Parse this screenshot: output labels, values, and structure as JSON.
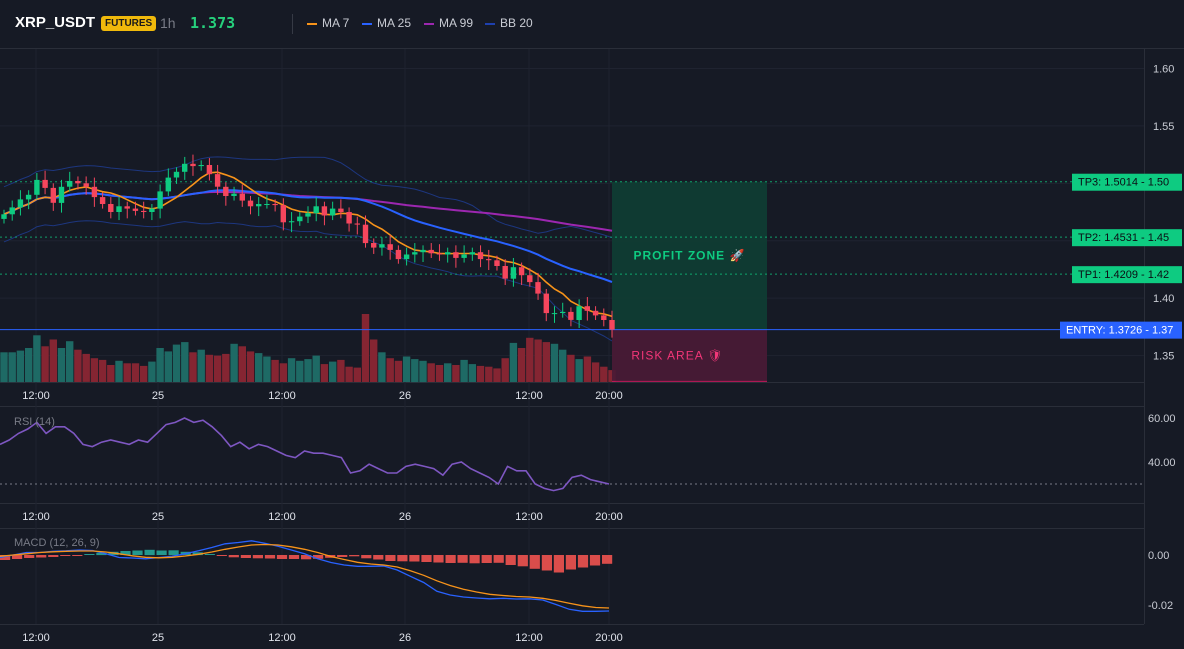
{
  "header": {
    "symbol": "XRP_USDT",
    "badge": "FUTURES",
    "timeframe": "1h",
    "price": "1.373"
  },
  "legend": [
    {
      "label": "MA 7",
      "color": "#f7931a"
    },
    {
      "label": "MA 25",
      "color": "#2962ff"
    },
    {
      "label": "MA 99",
      "color": "#9c27b0"
    },
    {
      "label": "BB 20",
      "color": "#1e40af"
    }
  ],
  "colors": {
    "up": "#26a69a",
    "up_bright": "#0ecb81",
    "down": "#f23645",
    "down_bright": "#f6465d"
  },
  "chart_data": [
    {
      "type": "candlestick",
      "name": "price",
      "x_ticks": [
        "12:00",
        "25",
        "12:00",
        "26",
        "12:00",
        "20:00"
      ],
      "y_ticks": [
        1.35,
        1.4,
        1.45,
        1.5,
        1.55,
        1.6
      ],
      "ylim": [
        1.327,
        1.61
      ],
      "closes": [
        1.473,
        1.479,
        1.486,
        1.49,
        1.503,
        1.496,
        1.483,
        1.497,
        1.502,
        1.5,
        1.497,
        1.488,
        1.482,
        1.475,
        1.48,
        1.478,
        1.476,
        1.475,
        1.478,
        1.493,
        1.505,
        1.51,
        1.517,
        1.515,
        1.516,
        1.508,
        1.497,
        1.489,
        1.491,
        1.485,
        1.48,
        1.482,
        1.482,
        1.481,
        1.466,
        1.467,
        1.471,
        1.474,
        1.48,
        1.472,
        1.478,
        1.475,
        1.465,
        1.464,
        1.448,
        1.444,
        1.447,
        1.442,
        1.434,
        1.438,
        1.44,
        1.442,
        1.439,
        1.438,
        1.44,
        1.435,
        1.438,
        1.44,
        1.434,
        1.433,
        1.428,
        1.417,
        1.427,
        1.42,
        1.414,
        1.404,
        1.387,
        1.387,
        1.388,
        1.381,
        1.393,
        1.389,
        1.385,
        1.381,
        1.3726
      ],
      "volumes": [
        35,
        35,
        37,
        40,
        55,
        42,
        50,
        40,
        48,
        38,
        33,
        28,
        26,
        20,
        25,
        22,
        22,
        19,
        24,
        40,
        36,
        44,
        47,
        35,
        38,
        32,
        31,
        33,
        45,
        42,
        36,
        34,
        30,
        26,
        22,
        28,
        25,
        27,
        31,
        21,
        24,
        26,
        18,
        17,
        80,
        50,
        35,
        28,
        25,
        30,
        27,
        25,
        22,
        20,
        22,
        20,
        26,
        21,
        19,
        18,
        16,
        28,
        46,
        40,
        52,
        50,
        47,
        45,
        38,
        32,
        27,
        30,
        23,
        18,
        14
      ],
      "levels": [
        {
          "label": "TP3: 1.5014",
          "axis": "1.50",
          "value": 1.5014,
          "color": "#0ecb81"
        },
        {
          "label": "TP2: 1.4531",
          "axis": "1.45",
          "value": 1.4531,
          "color": "#0ecb81"
        },
        {
          "label": "TP1: 1.4209",
          "axis": "1.42",
          "value": 1.4209,
          "color": "#0ecb81"
        },
        {
          "label": "ENTRY: 1.3726",
          "axis": "1.37",
          "value": 1.3726,
          "color": "#2962ff"
        }
      ],
      "zones": [
        {
          "label": "PROFIT ZONE 🚀",
          "from": 1.3726,
          "to": 1.5014
        },
        {
          "label": "RISK AREA 🛡",
          "from": 1.3726,
          "to": 1.3275
        }
      ]
    },
    {
      "type": "line",
      "name": "RSI (14)",
      "y_ticks": [
        40.0,
        60.0
      ],
      "ylim": [
        26,
        64
      ],
      "reference": 30,
      "values": [
        48,
        50,
        53,
        55,
        58,
        53,
        56,
        56,
        53,
        48,
        47,
        49,
        50,
        49,
        48,
        50,
        49,
        53,
        57,
        58,
        60,
        58,
        59,
        56,
        52,
        47,
        49,
        46,
        48,
        47,
        45,
        43,
        42,
        45,
        44,
        44,
        43,
        42,
        35,
        36,
        39,
        37,
        35,
        35,
        38,
        39,
        38,
        37,
        34,
        39,
        40,
        37,
        35,
        33,
        30,
        38,
        36,
        36,
        30,
        28,
        27,
        28,
        33,
        34,
        32,
        31,
        30
      ]
    },
    {
      "type": "bar",
      "name": "MACD (12, 26, 9)",
      "y_ticks": [
        0.0,
        -0.02
      ],
      "ylim": [
        -0.029,
        0.0065
      ],
      "macd_line": [
        -0.001,
        0.0,
        0.001,
        0.001,
        0.0015,
        0.0017,
        0.002,
        0.0018,
        0.0005,
        -0.001,
        -0.0012,
        -0.0015,
        -0.001,
        -0.0005,
        0.0005,
        0.0017,
        0.003,
        0.0045,
        0.005,
        0.0057,
        0.0047,
        0.0035,
        0.002,
        0.0005,
        -0.0015,
        -0.003,
        -0.004,
        -0.0045,
        -0.0045,
        -0.0044,
        -0.006,
        -0.0085,
        -0.011,
        -0.0145,
        -0.016,
        -0.0168,
        -0.0172,
        -0.0175,
        -0.0173,
        -0.0176,
        -0.0175,
        -0.018,
        -0.0198,
        -0.0217,
        -0.0225,
        -0.0225,
        -0.0224
      ],
      "signal_line": [
        -0.0005,
        0.0,
        0.0005,
        0.001,
        0.0013,
        0.0015,
        0.0016,
        0.0016,
        0.0012,
        0.0005,
        -0.0003,
        -0.0009,
        -0.0011,
        -0.0009,
        -0.0004,
        0.0003,
        0.0012,
        0.0023,
        0.0032,
        0.004,
        0.0042,
        0.004,
        0.0033,
        0.0023,
        0.001,
        -0.0006,
        -0.0018,
        -0.0029,
        -0.0036,
        -0.004,
        -0.0048,
        -0.0063,
        -0.0081,
        -0.0103,
        -0.0122,
        -0.0137,
        -0.0148,
        -0.0157,
        -0.0162,
        -0.0166,
        -0.0168,
        -0.0173,
        -0.0182,
        -0.0193,
        -0.0203,
        -0.021,
        -0.0212
      ],
      "histogram": [
        -0.002,
        -0.0016,
        -0.0012,
        -0.001,
        -0.0008,
        -0.0004,
        -0.0002,
        0.0004,
        0.0009,
        0.0013,
        0.0016,
        0.0018,
        0.0021,
        0.0018,
        0.0019,
        0.0013,
        0.0011,
        0.0004,
        -0.0004,
        -0.0009,
        -0.0012,
        -0.0013,
        -0.0014,
        -0.0016,
        -0.0016,
        -0.0017,
        -0.0015,
        -0.0011,
        -0.0008,
        -0.0005,
        -0.0013,
        -0.0018,
        -0.0024,
        -0.0025,
        -0.0026,
        -0.0028,
        -0.003,
        -0.0032,
        -0.0031,
        -0.0033,
        -0.0032,
        -0.0031,
        -0.004,
        -0.0045,
        -0.0055,
        -0.0062,
        -0.007,
        -0.0058,
        -0.005,
        -0.0042,
        -0.0035
      ]
    }
  ]
}
